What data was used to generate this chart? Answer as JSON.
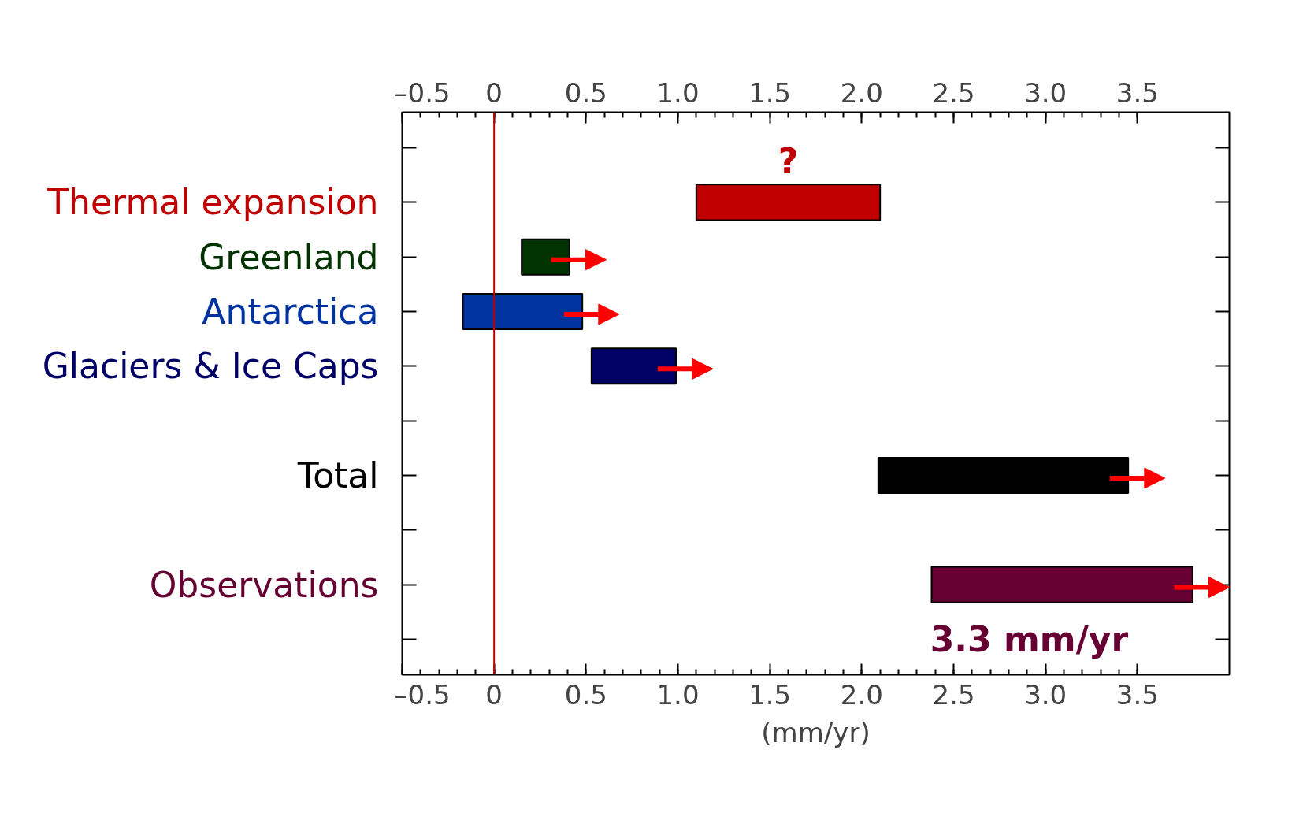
{
  "chart_data": {
    "type": "bar",
    "orientation": "horizontal",
    "categories": [
      null,
      "Thermal expansion",
      "Greenland",
      "Antarctica",
      "Glaciers & Ice Caps",
      null,
      "Total",
      null,
      "Observations",
      null
    ],
    "base": [
      null,
      1.1,
      0.15,
      -0.17,
      0.53,
      null,
      2.09,
      null,
      2.38,
      null
    ],
    "values": [
      null,
      1.0,
      0.26,
      0.65,
      0.46,
      null,
      1.36,
      null,
      1.42,
      null
    ],
    "colors": [
      "#000000",
      "#c00000",
      "#003300",
      "#0033a0",
      "#000066",
      "#000000",
      "#000000",
      "#000000",
      "#660033",
      "#000000"
    ],
    "xlabel": "(mm/yr)",
    "xlim": [
      -0.5,
      4.0
    ],
    "xticks": [
      {
        "value": -0.5,
        "label": "–0.5"
      },
      0,
      0.5,
      {
        "value": 1,
        "label": "1.0"
      },
      1.5,
      {
        "value": 2,
        "label": "2.0"
      },
      2.5,
      {
        "value": 3,
        "label": "3.0"
      },
      3.5
    ],
    "x2lim": [
      -0.5,
      4.0
    ],
    "x2ticks": [
      {
        "value": -0.5,
        "label": "–0.5"
      },
      0,
      0.5,
      {
        "value": 1,
        "label": "1.0"
      },
      1.5,
      {
        "value": 2,
        "label": "2.0"
      },
      2.5,
      {
        "value": 3,
        "label": "3.0"
      },
      3.5
    ],
    "ref_lines": [
      {
        "axis": "x",
        "value": 0,
        "color": "#c00000"
      }
    ],
    "annotations": [
      "?",
      "3.3 mm/yr"
    ],
    "grid": false
  }
}
